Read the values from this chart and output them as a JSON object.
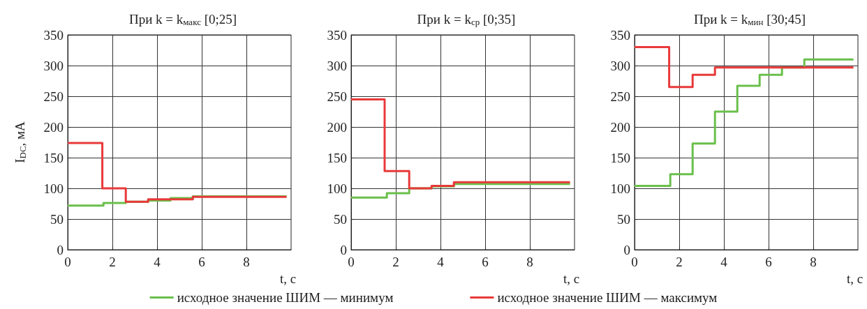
{
  "chart_data": [
    {
      "type": "step",
      "title": "При k = k$_{макс}$ [0;25]",
      "xlabel": "t, с",
      "ylabel": "I$_{DC}$, мА",
      "xlim": [
        0,
        10
      ],
      "xticks": [
        0,
        2,
        4,
        6,
        8
      ],
      "ylim": [
        0,
        350
      ],
      "yticks": [
        0,
        50,
        100,
        150,
        200,
        250,
        300,
        350
      ],
      "grid": true,
      "legend": "bottom",
      "line_style": "solid",
      "marker": "none",
      "series": [
        {
          "name": "исходное значение ШИМ — минимум",
          "color": "#6abf4b",
          "x": [
            0,
            1.6,
            2.6,
            3.6,
            4.6,
            5.6,
            9.8
          ],
          "values": [
            72,
            76,
            78,
            80,
            84,
            87,
            87
          ]
        },
        {
          "name": "исходное значение ШИМ — максимум",
          "color": "#e8393a",
          "x": [
            0,
            1.55,
            2.6,
            3.6,
            5.6,
            9.8
          ],
          "values": [
            174,
            100,
            78,
            82,
            86,
            86
          ]
        }
      ]
    },
    {
      "type": "step",
      "title": "При k = k$_{ср}$ [0;35]",
      "xlabel": "t, с",
      "xlim": [
        0,
        10
      ],
      "xticks": [
        0,
        2,
        4,
        6,
        8
      ],
      "ylim": [
        0,
        350
      ],
      "yticks": [
        0,
        50,
        100,
        150,
        200,
        250,
        300,
        350
      ],
      "grid": true,
      "legend": "bottom",
      "line_style": "solid",
      "marker": "none",
      "series": [
        {
          "name": "исходное значение ШИМ — минимум",
          "color": "#6abf4b",
          "x": [
            0,
            1.6,
            2.6,
            3.6,
            4.6,
            9.8
          ],
          "values": [
            85,
            92,
            100,
            103,
            107,
            107
          ]
        },
        {
          "name": "исходное значение ШИМ — максимум",
          "color": "#e8393a",
          "x": [
            0,
            1.5,
            2.6,
            3.6,
            4.6,
            9.8
          ],
          "values": [
            245,
            128,
            100,
            104,
            110,
            110
          ]
        }
      ]
    },
    {
      "type": "step",
      "title": "При k = k$_{мин}$ [30;45]",
      "xlabel": "t, с",
      "xlim": [
        0,
        10
      ],
      "xticks": [
        0,
        2,
        4,
        6,
        8
      ],
      "ylim": [
        0,
        350
      ],
      "yticks": [
        0,
        50,
        100,
        150,
        200,
        250,
        300,
        350
      ],
      "grid": true,
      "legend": "bottom",
      "line_style": "solid",
      "marker": "none",
      "series": [
        {
          "name": "исходное значение ШИМ — минимум",
          "color": "#6abf4b",
          "x": [
            0,
            1.6,
            2.6,
            3.6,
            4.6,
            5.6,
            6.6,
            7.6,
            9.8
          ],
          "values": [
            104,
            123,
            173,
            225,
            267,
            285,
            297,
            310,
            310
          ]
        },
        {
          "name": "исходное значение ШИМ — максимум",
          "color": "#e8393a",
          "x": [
            0,
            1.55,
            2.6,
            3.6,
            9.8
          ],
          "values": [
            330,
            265,
            285,
            297,
            297
          ]
        }
      ]
    }
  ]
}
